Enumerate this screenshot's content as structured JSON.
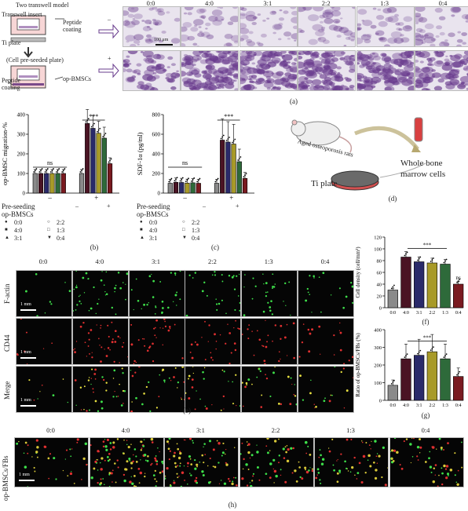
{
  "panel_a": {
    "title": "Two transwell model",
    "transwell_insert": "Transwell insert",
    "ti_plate": "Ti plate",
    "peptide_coating": "Peptide coating",
    "peptide_coating_2": "Peptide coating",
    "cell_preseeded": "(Cell pre-seeded plate)",
    "op_bmscs": "op-BMSCs",
    "minus": "–",
    "plus": "+",
    "ratios": [
      "0:0",
      "4:0",
      "3:1",
      "2:2",
      "1:3",
      "0:4"
    ],
    "scalebar": "100 μm",
    "caption": "(a)"
  },
  "panel_b": {
    "caption": "(b)"
  },
  "panel_c": {
    "caption": "(c)"
  },
  "legend": {
    "preseeding": "Pre-seeding",
    "opbmscs": "op-BMSCs",
    "minus": "–",
    "plus": "+",
    "entries": [
      "0:0",
      "4:0",
      "3:1",
      "2:2",
      "1:3",
      "0:4"
    ]
  },
  "panel_d": {
    "aged": "Aged osteoporosis rats",
    "whole": "Whole bone",
    "marrow": "marrow cells",
    "ti": "Ti plate",
    "caption": "(d)"
  },
  "panel_e": {
    "ratios": [
      "0:0",
      "4:0",
      "3:1",
      "2:2",
      "1:3",
      "0:4"
    ],
    "rows": [
      "F-actin",
      "CD44",
      "Merge"
    ],
    "scalebar": "1 mm",
    "caption": "(e)"
  },
  "panel_f": {
    "caption": "(f)"
  },
  "panel_g": {
    "caption": "(g)"
  },
  "panel_h": {
    "ratios": [
      "0:0",
      "4:0",
      "3:1",
      "2:2",
      "1:3",
      "0:4"
    ],
    "rowlabel": "op-BMSCs/FBs",
    "scalebar": "1 mm",
    "caption": "(h)"
  },
  "chart_data": [
    {
      "id": "b",
      "type": "bar",
      "ylabel": "op-BMSC migration-%",
      "ylim": [
        0,
        400
      ],
      "yticks": [
        0,
        100,
        200,
        300,
        400
      ],
      "group_labels": [
        "–",
        "+"
      ],
      "categories": [
        "0:0",
        "4:0",
        "3:1",
        "2:2",
        "1:3",
        "0:4"
      ],
      "series": [
        {
          "values": [
            100,
            100,
            100,
            100,
            100,
            100
          ]
        },
        {
          "values": [
            100,
            355,
            330,
            305,
            280,
            150
          ]
        }
      ],
      "annotations": [
        "ns",
        "***"
      ]
    },
    {
      "id": "c",
      "type": "bar",
      "ylabel": "SDF-1α (pg/ml)",
      "ylim": [
        0,
        800
      ],
      "yticks": [
        0,
        200,
        400,
        600,
        800
      ],
      "group_labels": [
        "–",
        "+"
      ],
      "categories": [
        "0:0",
        "4:0",
        "3:1",
        "2:2",
        "1:3",
        "0:4"
      ],
      "series": [
        {
          "values": [
            100,
            110,
            108,
            102,
            105,
            100
          ]
        },
        {
          "values": [
            100,
            540,
            520,
            500,
            320,
            150
          ]
        }
      ],
      "annotations": [
        "ns",
        "***"
      ]
    },
    {
      "id": "f",
      "type": "bar",
      "ylabel": "Cell density (cell/mm²)",
      "ylim": [
        0,
        120
      ],
      "yticks": [
        0,
        20,
        40,
        60,
        80,
        100,
        120
      ],
      "categories": [
        "0:0",
        "4:0",
        "3:1",
        "2:2",
        "1:3",
        "0:4"
      ],
      "values": [
        30,
        86,
        78,
        76,
        74,
        40
      ],
      "annotations": [
        "***",
        "ns"
      ]
    },
    {
      "id": "g",
      "type": "bar",
      "ylabel": "Ratio of op-BMSCs/FBs (%)",
      "ylim": [
        0,
        400
      ],
      "yticks": [
        0,
        100,
        200,
        300,
        400
      ],
      "categories": [
        "0:0",
        "4:0",
        "3:1",
        "2:2",
        "1:3",
        "0:4"
      ],
      "values": [
        85,
        235,
        255,
        275,
        235,
        135
      ],
      "annotations": [
        "***"
      ]
    }
  ],
  "colors": {
    "bars": [
      "#8a8a8a",
      "#4a1424",
      "#2a2a6a",
      "#a89a28",
      "#2e6a3a",
      "#7a1a20"
    ],
    "micro_bg": "#e9e4ee",
    "micro_stain": "#6a3c8e"
  }
}
